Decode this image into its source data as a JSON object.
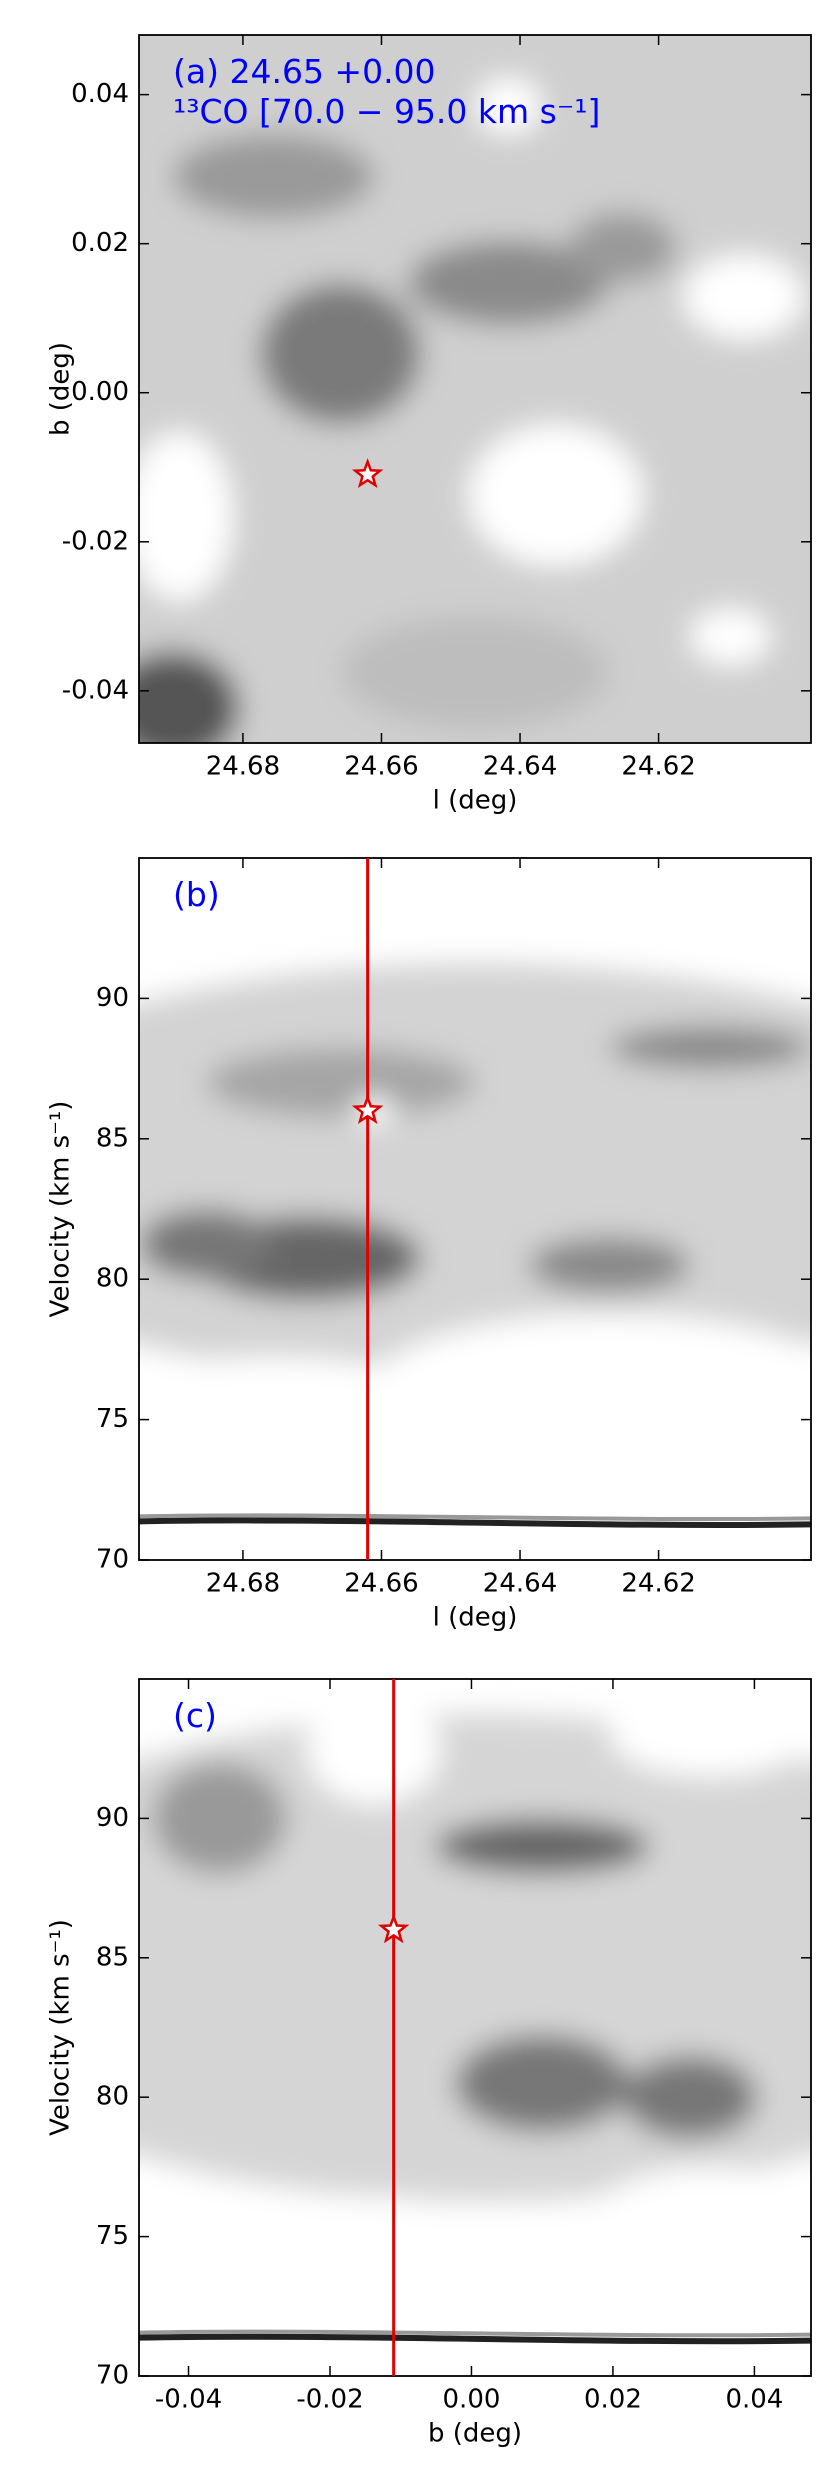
{
  "chart_data": [
    {
      "type": "contour",
      "annotations": [
        "(a) 24.65 +0.00",
        "¹³CO [70.0 − 95.0 km s⁻¹]"
      ],
      "xlabel": "l (deg)",
      "ylabel": "b (deg)",
      "xlim": [
        24.695,
        24.598
      ],
      "ylim": [
        -0.047,
        0.048
      ],
      "xticks": [
        24.68,
        24.66,
        24.64,
        24.62
      ],
      "yticks": [
        0.04,
        0.02,
        {
          "value": 0,
          "label": "0.00"
        },
        -0.02,
        -0.04
      ],
      "marker": {
        "x": 24.662,
        "y": -0.011
      }
    },
    {
      "type": "contour",
      "annotations": [
        "(b)"
      ],
      "xlabel": "l (deg)",
      "ylabel": "Velocity (km s⁻¹)",
      "xlim": [
        24.695,
        24.598
      ],
      "ylim": [
        70,
        95
      ],
      "xticks": [
        24.68,
        24.66,
        24.64,
        24.62
      ],
      "yticks": [
        90,
        85,
        80,
        75,
        70
      ],
      "marker": {
        "x": 24.662,
        "y": 86
      },
      "vline": 24.662
    },
    {
      "type": "contour",
      "annotations": [
        "(c)"
      ],
      "xlabel": "b (deg)",
      "ylabel": "Velocity (km s⁻¹)",
      "xlim": [
        -0.047,
        0.048
      ],
      "ylim": [
        70,
        95
      ],
      "xticks": [
        -0.04,
        -0.02,
        {
          "value": 0,
          "label": "0.00"
        },
        0.02,
        0.04
      ],
      "yticks": [
        90,
        85,
        80,
        75,
        70
      ],
      "marker": {
        "x": -0.011,
        "y": 86
      },
      "vline": -0.011
    }
  ]
}
